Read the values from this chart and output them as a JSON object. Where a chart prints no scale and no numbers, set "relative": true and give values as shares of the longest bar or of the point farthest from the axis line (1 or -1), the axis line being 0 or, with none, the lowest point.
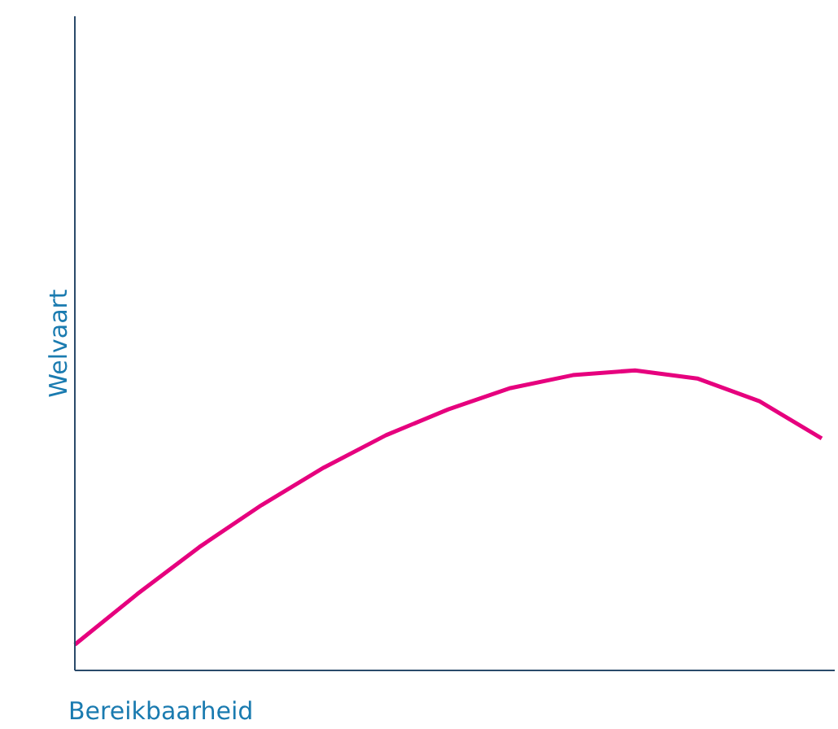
{
  "chart_data": {
    "type": "line",
    "xlabel": "Bereikbaarheid",
    "ylabel": "Welvaart",
    "relative": true,
    "categories": [
      null,
      null,
      null,
      null,
      null,
      null,
      null,
      null,
      null,
      null,
      null,
      null,
      null
    ],
    "series": [
      {
        "color": "#e6007e",
        "values": [
          0.086,
          0.254,
          0.411,
          0.551,
          0.676,
          0.784,
          0.87,
          0.941,
          0.984,
          1,
          0.973,
          0.897,
          0.773
        ]
      }
    ],
    "grid": false,
    "legend": false,
    "marker": "none",
    "line_style": "solid"
  }
}
